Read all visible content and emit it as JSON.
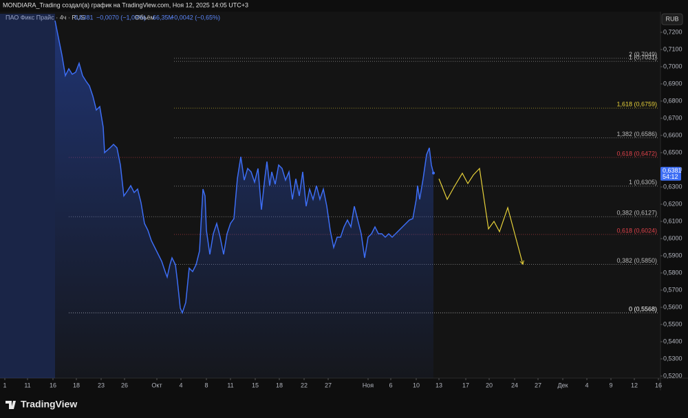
{
  "header": {
    "credit": "MONDIARA_Trading создал(а) график на TradingView.com, Ноя 12, 2025 14:05 UTC+3"
  },
  "legend": {
    "symbol": "ПАО Фикс Прайс · 4ч · RUS",
    "price": "0,6381",
    "change": "−0,0070 (−1,09%)",
    "volume_label": "Объём",
    "volume": "66,35M",
    "volume_change": "−0,0042 (−0,65%)"
  },
  "currency": "RUB",
  "price_tag": {
    "price": "0,6381",
    "countdown": "54:12"
  },
  "footer": {
    "brand": "TradingView"
  },
  "chart_data": {
    "type": "line",
    "xlim": [
      0,
      192
    ],
    "ylim": [
      0.5116,
      0.7308
    ],
    "xticks": [
      {
        "value": 1.4,
        "label": "1"
      },
      {
        "value": 8,
        "label": "11"
      },
      {
        "value": 15.4,
        "label": "16"
      },
      {
        "value": 22.2,
        "label": "18"
      },
      {
        "value": 29.4,
        "label": "23"
      },
      {
        "value": 36.2,
        "label": "26"
      },
      {
        "value": 45.6,
        "label": "Окт"
      },
      {
        "value": 52.6,
        "label": "4"
      },
      {
        "value": 60,
        "label": "8"
      },
      {
        "value": 67,
        "label": "11"
      },
      {
        "value": 74.2,
        "label": "15"
      },
      {
        "value": 81.2,
        "label": "18"
      },
      {
        "value": 88.4,
        "label": "22"
      },
      {
        "value": 95.4,
        "label": "27"
      },
      {
        "value": 107,
        "label": "Ноя"
      },
      {
        "value": 113.6,
        "label": "6"
      },
      {
        "value": 121,
        "label": "10"
      },
      {
        "value": 127.6,
        "label": "13"
      },
      {
        "value": 135.4,
        "label": "17"
      },
      {
        "value": 142.2,
        "label": "20"
      },
      {
        "value": 149.6,
        "label": "24"
      },
      {
        "value": 156.4,
        "label": "27"
      },
      {
        "value": 163.6,
        "label": "Дек"
      },
      {
        "value": 170.6,
        "label": "4"
      },
      {
        "value": 177.6,
        "label": "9"
      },
      {
        "value": 184.4,
        "label": "12"
      },
      {
        "value": 191.4,
        "label": "16"
      }
    ],
    "yticks": [
      {
        "value": 0.72,
        "label": "0,7200"
      },
      {
        "value": 0.71,
        "label": "0,7100"
      },
      {
        "value": 0.7,
        "label": "0,7000"
      },
      {
        "value": 0.69,
        "label": "0,6900"
      },
      {
        "value": 0.68,
        "label": "0,6800"
      },
      {
        "value": 0.67,
        "label": "0,6700"
      },
      {
        "value": 0.66,
        "label": "0,6600"
      },
      {
        "value": 0.65,
        "label": "0,6500"
      },
      {
        "value": 0.64,
        "label": "0,6400"
      },
      {
        "value": 0.63,
        "label": "0,6300"
      },
      {
        "value": 0.62,
        "label": "0,6200"
      },
      {
        "value": 0.61,
        "label": "0,6100"
      },
      {
        "value": 0.6,
        "label": "0,6000"
      },
      {
        "value": 0.59,
        "label": "0,5900"
      },
      {
        "value": 0.58,
        "label": "0,5800"
      },
      {
        "value": 0.57,
        "label": "0,5700"
      },
      {
        "value": 0.56,
        "label": "0,5600"
      },
      {
        "value": 0.55,
        "label": "0,5500"
      },
      {
        "value": 0.54,
        "label": "0,5400"
      },
      {
        "value": 0.53,
        "label": "0,5300"
      },
      {
        "value": 0.52,
        "label": "0,5200"
      }
    ],
    "series": [
      {
        "color": "#3d6ef5",
        "x": [
          16,
          17,
          18,
          19,
          20,
          21,
          22,
          23,
          24,
          25,
          26,
          27,
          28,
          29,
          30,
          30.4,
          32,
          33,
          34,
          35,
          36,
          37,
          38,
          39,
          40,
          41,
          42,
          43,
          44,
          45,
          46,
          47,
          48,
          48.6,
          49.4,
          50,
          51,
          51.6,
          52.4,
          53,
          54,
          55,
          56,
          57,
          58,
          59,
          59.6,
          60,
          61,
          62,
          63,
          64,
          65,
          66,
          67,
          68,
          69,
          70,
          71,
          72,
          73,
          74,
          75,
          76,
          77,
          77.6,
          78.4,
          79,
          80,
          81,
          82,
          83,
          84,
          85,
          86,
          87,
          88,
          89,
          90,
          91,
          92,
          93,
          94,
          95,
          96,
          97,
          98,
          99,
          100,
          101,
          102,
          103,
          104,
          105,
          106,
          107,
          108,
          109,
          110,
          111,
          112,
          113,
          114,
          115,
          116,
          117,
          118,
          119,
          120,
          121,
          121.4,
          122,
          123,
          124,
          124.8,
          125.4,
          126
        ],
        "values": [
          0.7268,
          0.7168,
          0.7068,
          0.6948,
          0.6988,
          0.6956,
          0.6968,
          0.702,
          0.6948,
          0.6916,
          0.6888,
          0.6828,
          0.6748,
          0.6768,
          0.6648,
          0.65,
          0.6528,
          0.6548,
          0.6528,
          0.6428,
          0.6248,
          0.6276,
          0.6308,
          0.6268,
          0.6288,
          0.6208,
          0.6088,
          0.6048,
          0.5988,
          0.5948,
          0.5908,
          0.5868,
          0.5808,
          0.5776,
          0.5848,
          0.5888,
          0.5848,
          0.5748,
          0.5596,
          0.5568,
          0.5628,
          0.5828,
          0.5808,
          0.5848,
          0.5928,
          0.6288,
          0.6248,
          0.6048,
          0.5908,
          0.6028,
          0.6088,
          0.6008,
          0.5908,
          0.6028,
          0.6088,
          0.6116,
          0.6348,
          0.6476,
          0.634,
          0.6408,
          0.6388,
          0.6328,
          0.6408,
          0.6168,
          0.6356,
          0.6448,
          0.6308,
          0.6388,
          0.6316,
          0.6428,
          0.6408,
          0.634,
          0.6388,
          0.6228,
          0.6348,
          0.6248,
          0.6388,
          0.6188,
          0.6288,
          0.6228,
          0.6308,
          0.6228,
          0.6288,
          0.6188,
          0.6048,
          0.5948,
          0.6008,
          0.6008,
          0.6068,
          0.6108,
          0.6068,
          0.6188,
          0.6108,
          0.6028,
          0.5888,
          0.6008,
          0.6028,
          0.6068,
          0.6028,
          0.6028,
          0.6008,
          0.6028,
          0.6008,
          0.6028,
          0.6048,
          0.6068,
          0.6088,
          0.6108,
          0.6116,
          0.6228,
          0.6308,
          0.6228,
          0.6348,
          0.6488,
          0.6528,
          0.6428,
          0.6381
        ]
      },
      {
        "color": "#e8d23a",
        "x": [
          127.6,
          130,
          132,
          134.4,
          136,
          137.6,
          139.4,
          142,
          143.6,
          145.2,
          147.6,
          152
        ],
        "values": [
          0.6348,
          0.6228,
          0.63,
          0.638,
          0.632,
          0.637,
          0.6408,
          0.6056,
          0.61,
          0.604,
          0.618,
          0.585
        ]
      }
    ],
    "levels": [
      {
        "label": "2 (0,7049)",
        "value": 0.7049,
        "from": 50.6,
        "color": "#b8b8b8"
      },
      {
        "label": "1 (0,7031)",
        "value": 0.7031,
        "from": 50.6,
        "color": "#b8b8b8"
      },
      {
        "label": "1,618 (0,6759)",
        "value": 0.6759,
        "from": 50.6,
        "color": "#e8d23a"
      },
      {
        "label": "1,382 (0,6586)",
        "value": 0.6586,
        "from": 50.6,
        "color": "#b8b8b8"
      },
      {
        "label": "0,618 (0,6472)",
        "value": 0.6472,
        "from": 20,
        "color": "#e0424a"
      },
      {
        "label": "1 (0,6305)",
        "value": 0.6305,
        "from": 50.6,
        "color": "#b8b8b8"
      },
      {
        "label": "0,382 (0,6127)",
        "value": 0.6127,
        "from": 20,
        "color": "#b8b8b8"
      },
      {
        "label": "0,618 (0,6024)",
        "value": 0.6024,
        "from": 50.6,
        "color": "#e0424a"
      },
      {
        "label": "0,382 (0,5850)",
        "value": 0.585,
        "from": 50.6,
        "color": "#b8b8b8"
      },
      {
        "label": "0 (0,5568)",
        "value": 0.5568,
        "from": 20,
        "color": "#ffffff"
      }
    ]
  }
}
